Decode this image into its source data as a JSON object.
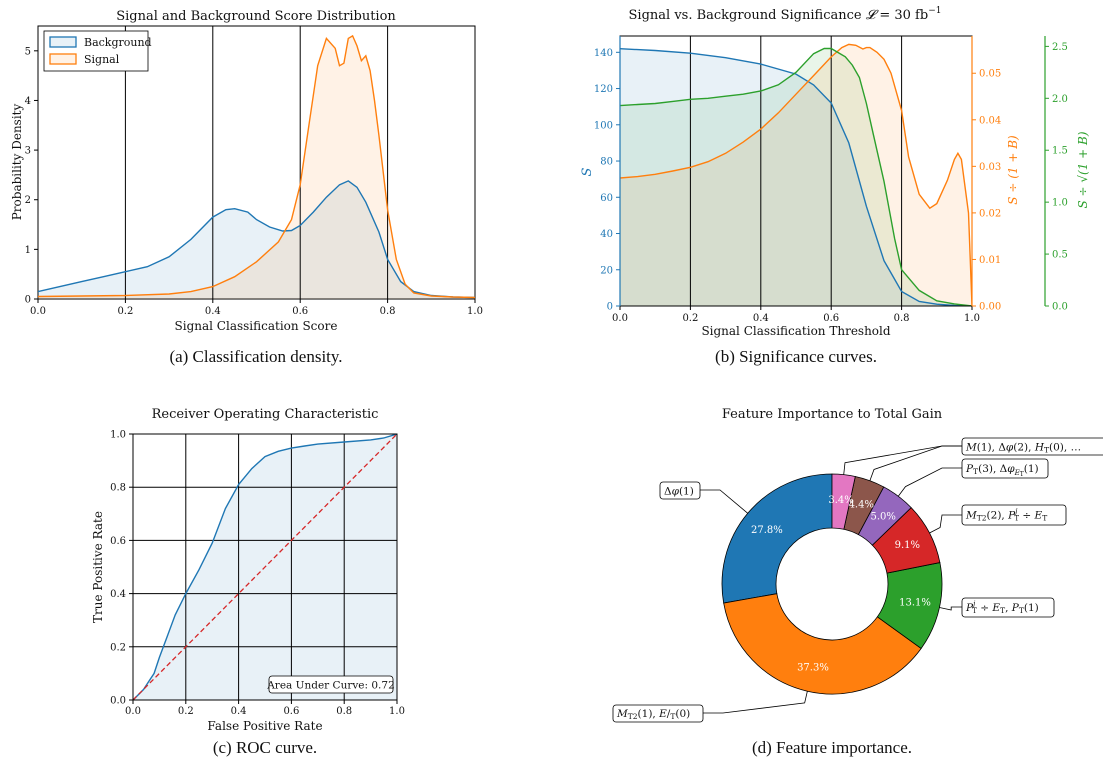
{
  "colors": {
    "background": "#1f77b4",
    "signal": "#ff7f0e",
    "green": "#2ca02c",
    "roc_random": "#d62728",
    "pie": [
      "#1f77b4",
      "#ff7f0e",
      "#2ca02c",
      "#d62728",
      "#9467bd",
      "#8c564b",
      "#e377c2"
    ]
  },
  "chart_data": [
    {
      "type": "area",
      "title": "Signal and Background Score Distribution",
      "xlabel": "Signal Classification Score",
      "ylabel": "Probability Density",
      "caption": "(a) Classification density.",
      "xlim": [
        0,
        1.0
      ],
      "ylim": [
        0,
        5.5
      ],
      "xticks": [
        "0.0",
        "0.2",
        "0.4",
        "0.6",
        "0.8",
        "1.0"
      ],
      "yticks": [
        "0",
        "1",
        "2",
        "3",
        "4",
        "5"
      ],
      "vlines": [
        0.2,
        0.4,
        0.6,
        0.8
      ],
      "legend": "top-left",
      "series": [
        {
          "name": "Background",
          "x": [
            0,
            0.05,
            0.1,
            0.15,
            0.2,
            0.25,
            0.3,
            0.35,
            0.4,
            0.43,
            0.45,
            0.48,
            0.5,
            0.53,
            0.56,
            0.58,
            0.6,
            0.63,
            0.66,
            0.69,
            0.71,
            0.73,
            0.75,
            0.78,
            0.8,
            0.83,
            0.86,
            0.9,
            0.95,
            1.0
          ],
          "y": [
            0.15,
            0.25,
            0.35,
            0.45,
            0.55,
            0.65,
            0.85,
            1.2,
            1.65,
            1.8,
            1.82,
            1.75,
            1.6,
            1.45,
            1.37,
            1.38,
            1.48,
            1.75,
            2.05,
            2.3,
            2.38,
            2.25,
            1.95,
            1.35,
            0.8,
            0.35,
            0.15,
            0.07,
            0.04,
            0.03
          ]
        },
        {
          "name": "Signal",
          "x": [
            0,
            0.1,
            0.2,
            0.3,
            0.35,
            0.4,
            0.45,
            0.5,
            0.55,
            0.58,
            0.6,
            0.62,
            0.64,
            0.66,
            0.68,
            0.69,
            0.7,
            0.71,
            0.72,
            0.73,
            0.74,
            0.75,
            0.76,
            0.77,
            0.78,
            0.8,
            0.82,
            0.84,
            0.86,
            0.9,
            0.95,
            1.0
          ],
          "y": [
            0.05,
            0.06,
            0.07,
            0.1,
            0.15,
            0.25,
            0.45,
            0.75,
            1.15,
            1.6,
            2.3,
            3.5,
            4.7,
            5.25,
            5.05,
            4.7,
            4.75,
            5.25,
            5.3,
            5.1,
            4.8,
            4.9,
            4.6,
            4.0,
            3.3,
            1.8,
            0.8,
            0.3,
            0.12,
            0.06,
            0.04,
            0.03
          ]
        }
      ]
    },
    {
      "type": "line",
      "title": "Signal vs. Background Significance",
      "title_math": "30",
      "title_unit": "fb",
      "xlabel": "Signal Classification Threshold",
      "caption": "(b) Significance curves.",
      "xlim": [
        0,
        1.0
      ],
      "xticks": [
        "0.0",
        "0.2",
        "0.4",
        "0.6",
        "0.8",
        "1.0"
      ],
      "vlines": [
        0.2,
        0.4,
        0.6,
        0.8
      ],
      "axes": [
        {
          "label": "S",
          "color": "#1f77b4",
          "ylim": [
            0,
            149
          ],
          "ticks": [
            "0",
            "20",
            "40",
            "60",
            "80",
            "100",
            "120",
            "140"
          ]
        },
        {
          "label": "S ÷ (1 + B)",
          "color": "#ff7f0e",
          "ylim": [
            0,
            0.058
          ],
          "ticks": [
            "0.00",
            "0.01",
            "0.02",
            "0.03",
            "0.04",
            "0.05"
          ]
        },
        {
          "label": "S ÷ √(1 + B)",
          "color": "#2ca02c",
          "ylim": [
            0,
            2.6
          ],
          "ticks": [
            "0.0",
            "0.5",
            "1.0",
            "1.5",
            "2.0",
            "2.5"
          ]
        }
      ],
      "series": [
        {
          "name": "S",
          "axis": 0,
          "x": [
            0,
            0.1,
            0.2,
            0.3,
            0.4,
            0.5,
            0.55,
            0.6,
            0.65,
            0.7,
            0.75,
            0.8,
            0.85,
            0.9,
            0.95,
            1.0
          ],
          "y": [
            142,
            141,
            139.5,
            137,
            133.5,
            128,
            122,
            112,
            90,
            55,
            25,
            8,
            2.5,
            1,
            0.3,
            0
          ]
        },
        {
          "name": "S ÷ (1 + B)",
          "axis": 1,
          "x": [
            0,
            0.05,
            0.1,
            0.15,
            0.2,
            0.25,
            0.3,
            0.35,
            0.4,
            0.45,
            0.5,
            0.55,
            0.6,
            0.63,
            0.65,
            0.67,
            0.69,
            0.7,
            0.71,
            0.73,
            0.75,
            0.77,
            0.8,
            0.82,
            0.85,
            0.88,
            0.9,
            0.93,
            0.95,
            0.96,
            0.97,
            0.99,
            1.0
          ],
          "y": [
            0.0275,
            0.0278,
            0.0283,
            0.029,
            0.0298,
            0.031,
            0.0328,
            0.0352,
            0.038,
            0.0415,
            0.0455,
            0.0495,
            0.0535,
            0.0555,
            0.0562,
            0.056,
            0.0552,
            0.0555,
            0.0555,
            0.0545,
            0.053,
            0.05,
            0.042,
            0.032,
            0.024,
            0.021,
            0.022,
            0.027,
            0.0315,
            0.0328,
            0.0315,
            0.02,
            0
          ]
        },
        {
          "name": "S ÷ √(1 + B)",
          "axis": 2,
          "x": [
            0,
            0.05,
            0.1,
            0.15,
            0.2,
            0.25,
            0.3,
            0.35,
            0.4,
            0.45,
            0.5,
            0.55,
            0.58,
            0.6,
            0.62,
            0.64,
            0.66,
            0.68,
            0.7,
            0.72,
            0.75,
            0.78,
            0.8,
            0.85,
            0.9,
            0.95,
            1.0
          ],
          "y": [
            1.93,
            1.94,
            1.95,
            1.97,
            1.99,
            2.0,
            2.02,
            2.04,
            2.07,
            2.13,
            2.25,
            2.43,
            2.48,
            2.48,
            2.44,
            2.4,
            2.32,
            2.2,
            1.95,
            1.65,
            1.2,
            0.65,
            0.35,
            0.15,
            0.05,
            0.02,
            0
          ]
        }
      ]
    },
    {
      "type": "line",
      "title": "Receiver Operating Characteristic",
      "xlabel": "False Positive Rate",
      "ylabel": "True Positive Rate",
      "caption": "(c) ROC curve.",
      "xlim": [
        0,
        1.0
      ],
      "ylim": [
        0,
        1.0
      ],
      "xticks": [
        "0.0",
        "0.2",
        "0.4",
        "0.6",
        "0.8",
        "1.0"
      ],
      "yticks": [
        "0.0",
        "0.2",
        "0.4",
        "0.6",
        "0.8",
        "1.0"
      ],
      "grid": true,
      "annotation": "Area Under Curve: 0.72",
      "series": [
        {
          "name": "ROC",
          "x": [
            0,
            0.02,
            0.04,
            0.06,
            0.08,
            0.1,
            0.13,
            0.16,
            0.2,
            0.25,
            0.3,
            0.35,
            0.4,
            0.45,
            0.5,
            0.55,
            0.6,
            0.65,
            0.7,
            0.8,
            0.9,
            0.95,
            1.0
          ],
          "y": [
            0,
            0.02,
            0.04,
            0.07,
            0.1,
            0.16,
            0.24,
            0.32,
            0.4,
            0.49,
            0.59,
            0.72,
            0.81,
            0.87,
            0.915,
            0.935,
            0.947,
            0.955,
            0.962,
            0.97,
            0.978,
            0.985,
            1.0
          ]
        },
        {
          "name": "random",
          "x": [
            0,
            1
          ],
          "y": [
            0,
            1
          ]
        }
      ]
    },
    {
      "type": "pie",
      "title": "Feature Importance to Total Gain",
      "caption": "(d) Feature importance.",
      "slices": [
        {
          "value": 27.8,
          "pct": "27.8%",
          "label": "Δφ(1)"
        },
        {
          "value": 37.3,
          "pct": "37.3%",
          "label": "M_T2(1), E/_T(0)"
        },
        {
          "value": 13.1,
          "pct": "13.1%",
          "label": "P_T^j ÷ E/_T, P_T(1)"
        },
        {
          "value": 9.1,
          "pct": "9.1%",
          "label": "M_T2(2), P_T^j ÷ E/_T"
        },
        {
          "value": 5.0,
          "pct": "5.0%",
          "label": "P_T(3), Δφ_E/T(1)"
        },
        {
          "value": 4.4,
          "pct": "4.4%",
          "label": "M(1), Δφ(2), H_T(0), ..."
        },
        {
          "value": 3.4,
          "pct": "3.4%",
          "label": ""
        }
      ]
    }
  ]
}
